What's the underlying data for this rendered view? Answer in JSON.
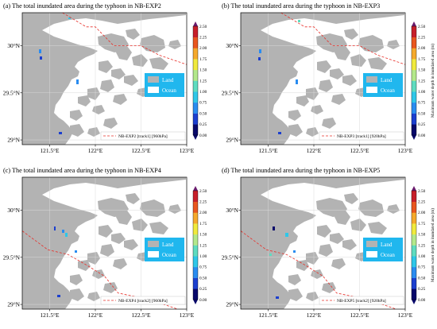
{
  "colorbar": {
    "ticks": [
      "0.00",
      "0.25",
      "0.50",
      "0.75",
      "1.00",
      "1.25",
      "1.50",
      "1.75",
      "2.00",
      "2.25",
      "2.50"
    ],
    "colors": [
      "#08086a",
      "#1c3fcf",
      "#2a8cf0",
      "#2fc7e8",
      "#5fdcc0",
      "#b3e88b",
      "#f0ea3d",
      "#f5a92c",
      "#e9561f",
      "#c71f2a",
      "#6b1b6d"
    ],
    "label": "Maximum water depth in inundated area (m)"
  },
  "axes": {
    "x_ticks": [
      "121.5°E",
      "122°E",
      "122.5°E",
      "123°E"
    ],
    "y_ticks": [
      "30°N",
      "29.5°N",
      "29°N"
    ]
  },
  "legend": {
    "land": "Land",
    "ocean": "Ocean"
  },
  "colors": {
    "land": "#b3b3b3",
    "ocean_box": "#20b7ee",
    "track": "#e8302a"
  },
  "panels": [
    {
      "title": "(a) The total inundated area during the typhoon in NB-EXP2",
      "track_label": "NB-EXP2 [track1] [960hPa]",
      "track": "track1",
      "show_cblabel": false
    },
    {
      "title": "(b) The total inundated area during the typhoon in NB-EXP3",
      "track_label": "NB-EXP3 [track1] [920hPa]",
      "track": "track1",
      "show_cblabel": true
    },
    {
      "title": "(c) The total inundated area during the typhoon in NB-EXP4",
      "track_label": "NB-EXP4 [track2] [960hPa]",
      "track": "track2",
      "show_cblabel": false
    },
    {
      "title": "(d) The total inundated area during the typhoon in NB-EXP5",
      "track_label": "NB-EXP5 [track2] [920hPa]",
      "track": "track2",
      "show_cblabel": true
    }
  ]
}
